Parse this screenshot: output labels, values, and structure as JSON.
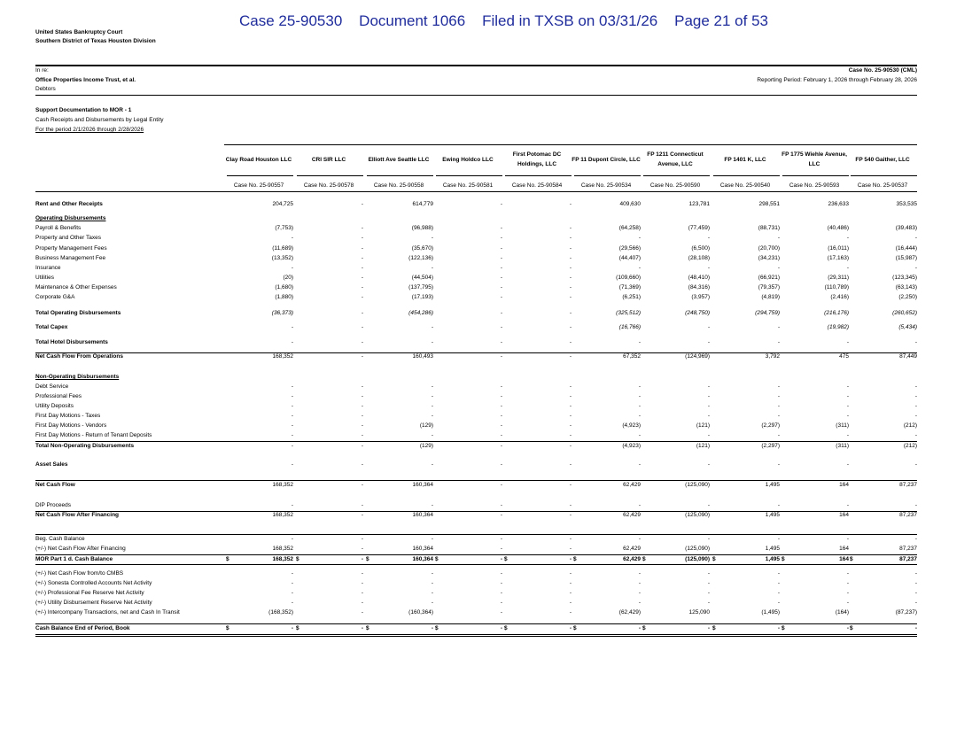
{
  "stamp": "Case 25-90530    Document 1066    Filed in TXSB on 03/31/26    Page 21 of 53",
  "header": {
    "court": "United States Bankruptcy Court",
    "division": "Southern District of Texas Houston Division",
    "in_re": "In re:",
    "debtor": "Office Properties Income Trust, et al.",
    "debtors": "Debtors",
    "case_no": "Case No. 25-90530 (CML)",
    "reporting_period": "Reporting Period: February 1, 2026 through February 28, 2026",
    "title": "Support Documentation to MOR - 1",
    "subtitle": "Cash Receipts and Disbursements by Legal Entity",
    "period": "For the period 2/1/2026 through 2/28/2026"
  },
  "table": {
    "columns": [
      {
        "name": "Clay Road Houston LLC",
        "case_no": "Case No. 25-90557"
      },
      {
        "name": "CRI SIR LLC",
        "case_no": "Case No. 25-90578"
      },
      {
        "name": "Elliott Ave Seattle LLC",
        "case_no": "Case No. 25-90558"
      },
      {
        "name": "Ewing Holdco LLC",
        "case_no": "Case No. 25-90581"
      },
      {
        "name": "First Potomac DC Holdings, LLC",
        "case_no": "Case No. 25-90584"
      },
      {
        "name": "FP 11 Dupont Circle, LLC",
        "case_no": "Case No. 25-90534"
      },
      {
        "name": "FP 1211 Connecticut Avenue, LLC",
        "case_no": "Case No. 25-90590"
      },
      {
        "name": "FP 1401 K, LLC",
        "case_no": "Case No. 25-90540"
      },
      {
        "name": "FP 1775 Wiehle Avenue, LLC",
        "case_no": "Case No. 25-90593"
      },
      {
        "name": "FP 540 Gaither, LLC",
        "case_no": "Case No. 25-90537"
      }
    ],
    "rows": [
      {
        "label": "Rent and Other Receipts",
        "values": [
          "204,725",
          "-",
          "614,779",
          "-",
          "-",
          "409,630",
          "123,781",
          "298,551",
          "236,633",
          "353,535"
        ]
      },
      {
        "label": "Operating Disbursements"
      },
      {
        "label": "Payroll & Benefits",
        "values": [
          "(7,753)",
          "-",
          "(96,988)",
          "-",
          "-",
          "(64,258)",
          "(77,459)",
          "(88,731)",
          "(40,486)",
          "(39,483)"
        ]
      },
      {
        "label": "Property and Other Taxes",
        "values": [
          "-",
          "-",
          "-",
          "-",
          "-",
          "-",
          "-",
          "-",
          "-",
          "-"
        ]
      },
      {
        "label": "Property Management Fees",
        "values": [
          "(11,689)",
          "-",
          "(35,670)",
          "-",
          "-",
          "(29,566)",
          "(6,500)",
          "(20,700)",
          "(16,011)",
          "(16,444)"
        ]
      },
      {
        "label": "Business Management Fee",
        "values": [
          "(13,352)",
          "-",
          "(122,136)",
          "-",
          "-",
          "(44,407)",
          "(28,108)",
          "(34,231)",
          "(17,163)",
          "(15,987)"
        ]
      },
      {
        "label": "Insurance",
        "values": [
          "-",
          "-",
          "-",
          "-",
          "-",
          "-",
          "-",
          "-",
          "-",
          "-"
        ]
      },
      {
        "label": "Utilities",
        "values": [
          "(20)",
          "-",
          "(44,504)",
          "-",
          "-",
          "(109,660)",
          "(48,410)",
          "(66,921)",
          "(29,311)",
          "(123,345)"
        ]
      },
      {
        "label": "Maintenance & Other Expenses",
        "values": [
          "(1,680)",
          "-",
          "(137,795)",
          "-",
          "-",
          "(71,369)",
          "(84,316)",
          "(79,357)",
          "(110,789)",
          "(63,143)"
        ]
      },
      {
        "label": "Corporate G&A",
        "values": [
          "(1,880)",
          "-",
          "(17,193)",
          "-",
          "-",
          "(6,251)",
          "(3,957)",
          "(4,819)",
          "(2,416)",
          "(2,250)"
        ]
      },
      {
        "label": "Total Operating Disbursements",
        "values": [
          "(36,373)",
          "-",
          "(454,286)",
          "-",
          "-",
          "(325,512)",
          "(248,750)",
          "(294,759)",
          "(216,176)",
          "(260,652)"
        ]
      },
      {
        "label": "Total Capex",
        "values": [
          "-",
          "-",
          "-",
          "-",
          "-",
          "(16,766)",
          "-",
          "-",
          "(19,982)",
          "(5,434)"
        ]
      },
      {
        "label": "Total Hotel Disbursements",
        "values": [
          "-",
          "-",
          "-",
          "-",
          "-",
          "-",
          "-",
          "-",
          "-",
          "-"
        ]
      },
      {
        "label": "Net Cash Flow From Operations",
        "values": [
          "168,352",
          "-",
          "160,493",
          "-",
          "-",
          "67,352",
          "(124,969)",
          "3,792",
          "475",
          "87,449"
        ]
      },
      {
        "label": "Non-Operating Disbursements"
      },
      {
        "label": "Debt Service",
        "values": [
          "-",
          "-",
          "-",
          "-",
          "-",
          "-",
          "-",
          "-",
          "-",
          "-"
        ]
      },
      {
        "label": "Professional Fees",
        "values": [
          "-",
          "-",
          "-",
          "-",
          "-",
          "-",
          "-",
          "-",
          "-",
          "-"
        ]
      },
      {
        "label": "Utility Deposits",
        "values": [
          "-",
          "-",
          "-",
          "-",
          "-",
          "-",
          "-",
          "-",
          "-",
          "-"
        ]
      },
      {
        "label": "First Day Motions - Taxes",
        "values": [
          "-",
          "-",
          "-",
          "-",
          "-",
          "-",
          "-",
          "-",
          "-",
          "-"
        ]
      },
      {
        "label": "First Day Motions - Vendors",
        "values": [
          "-",
          "-",
          "(129)",
          "-",
          "-",
          "(4,923)",
          "(121)",
          "(2,297)",
          "(311)",
          "(212)"
        ]
      },
      {
        "label": "First Day Motions - Return of Tenant Deposits",
        "values": [
          "-",
          "-",
          "-",
          "-",
          "-",
          "-",
          "-",
          "-",
          "-",
          "-"
        ]
      },
      {
        "label": "Total Non-Operating Disbursements",
        "values": [
          "-",
          "-",
          "(129)",
          "-",
          "-",
          "(4,923)",
          "(121)",
          "(2,297)",
          "(311)",
          "(212)"
        ]
      },
      {
        "label": "Asset Sales",
        "values": [
          "-",
          "-",
          "-",
          "-",
          "-",
          "-",
          "-",
          "-",
          "-",
          "-"
        ]
      },
      {
        "label": "Net Cash Flow",
        "values": [
          "168,352",
          "-",
          "160,364",
          "-",
          "-",
          "62,429",
          "(125,090)",
          "1,495",
          "164",
          "87,237"
        ]
      },
      {
        "label": "DIP Proceeds",
        "values": [
          "-",
          "-",
          "-",
          "-",
          "-",
          "-",
          "-",
          "-",
          "-",
          "-"
        ]
      },
      {
        "label": "Net Cash Flow After Financing",
        "values": [
          "168,352",
          "-",
          "160,364",
          "-",
          "-",
          "62,429",
          "(125,090)",
          "1,495",
          "164",
          "87,237"
        ]
      },
      {
        "label": "Beg. Cash Balance",
        "values": [
          "-",
          "-",
          "-",
          "-",
          "-",
          "-",
          "-",
          "-",
          "-",
          "-"
        ]
      },
      {
        "label": "(+/-) Net Cash Flow After Financing",
        "values": [
          "168,352",
          "-",
          "160,364",
          "-",
          "-",
          "62,429",
          "(125,090)",
          "1,495",
          "164",
          "87,237"
        ]
      },
      {
        "label": "MOR Part 1 d. Cash Balance",
        "currency": "$",
        "values": [
          "168,352",
          "-",
          "160,364",
          "-",
          "-",
          "62,429",
          "(125,090)",
          "1,495",
          "164",
          "87,237"
        ]
      },
      {
        "label": "(+/-) Net Cash Flow from/to CMBS",
        "values": [
          "-",
          "-",
          "-",
          "-",
          "-",
          "-",
          "-",
          "-",
          "-",
          "-"
        ]
      },
      {
        "label": "(+/-) Sonesta Controlled Accounts Net Activity",
        "values": [
          "-",
          "-",
          "-",
          "-",
          "-",
          "-",
          "-",
          "-",
          "-",
          "-"
        ]
      },
      {
        "label": "(+/-) Professional Fee Reserve Net Activity",
        "values": [
          "-",
          "-",
          "-",
          "-",
          "-",
          "-",
          "-",
          "-",
          "-",
          "-"
        ]
      },
      {
        "label": "(+/-) Utility Disbursement Reserve Net Activity",
        "values": [
          "-",
          "-",
          "-",
          "-",
          "-",
          "-",
          "-",
          "-",
          "-",
          "-"
        ]
      },
      {
        "label": "(+/-) Intercompany Transactions, net and Cash In Transit",
        "values": [
          "(168,352)",
          "-",
          "(160,364)",
          "-",
          "-",
          "(62,429)",
          "125,090",
          "(1,495)",
          "(164)",
          "(87,237)"
        ]
      },
      {
        "label": "Cash Balance End of Period, Book",
        "currency": "$",
        "values": [
          "-",
          "-",
          "-",
          "-",
          "-",
          "-",
          "-",
          "-",
          "-",
          "-"
        ]
      }
    ]
  }
}
